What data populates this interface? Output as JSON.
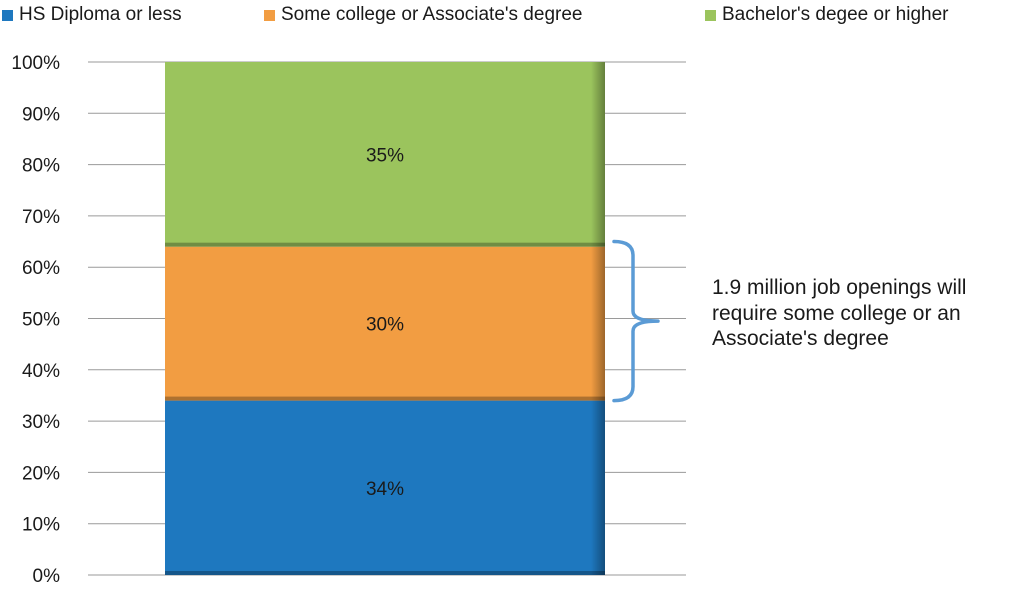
{
  "chart_data": {
    "type": "bar",
    "stacked": true,
    "categories": [
      ""
    ],
    "series": [
      {
        "name": "HS Diploma or less",
        "values": [
          34
        ],
        "color": "#1e78bf",
        "label": "34%"
      },
      {
        "name": "Some college or Associate's degree",
        "values": [
          30
        ],
        "color": "#f29d42",
        "label": "30%"
      },
      {
        "name": "Bachelor's degee or higher",
        "values": [
          35
        ],
        "color": "#9bc45d",
        "label": "35%"
      }
    ],
    "ylim": [
      0,
      100
    ],
    "yticks": [
      "0%",
      "10%",
      "20%",
      "30%",
      "40%",
      "50%",
      "60%",
      "70%",
      "80%",
      "90%",
      "100%"
    ],
    "grid": true,
    "legend_position": "top",
    "annotation": {
      "text": "1.9 million job openings will require some college or an Associate's degree",
      "bracket_color": "#5b9bd5",
      "span": [
        34,
        65
      ]
    }
  }
}
